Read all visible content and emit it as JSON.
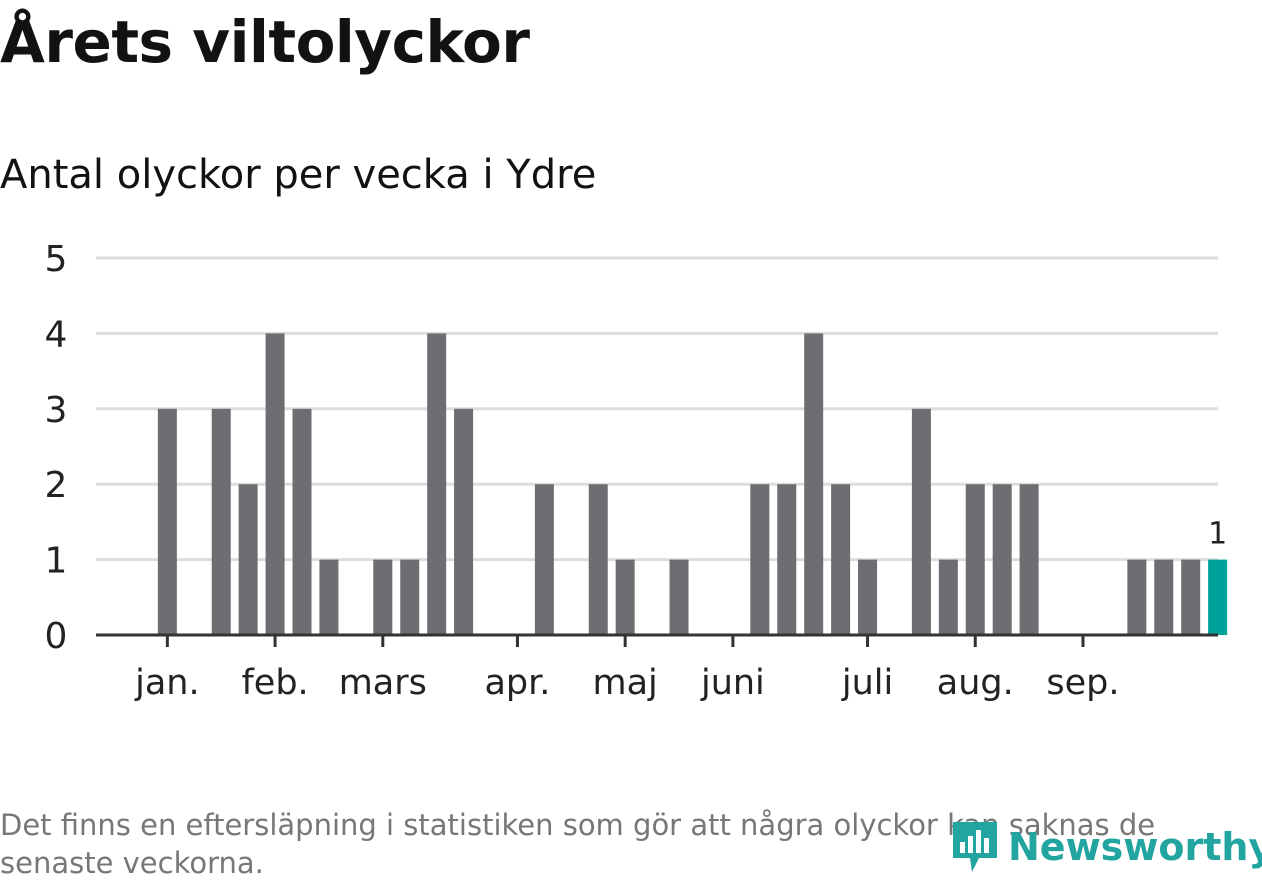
{
  "header": {
    "title": "Årets viltolyckor",
    "subtitle": "Antal olyckor per vecka i Ydre"
  },
  "footer": {
    "note": "Det finns en eftersläpning i statistiken som gör att några olyckor kan saknas de senaste veckorna.",
    "logo_text": "Newsworthy"
  },
  "colors": {
    "bar": "#6e6d72",
    "highlight": "#00a19a",
    "grid": "#dddddd",
    "axis": "#333333",
    "logo": "#22a4a0"
  },
  "chart_data": {
    "type": "bar",
    "title": "Antal olyckor per vecka i Ydre",
    "xlabel": "",
    "ylabel": "Antal olyckor",
    "ylim": [
      0,
      5
    ],
    "yticks": [
      "0",
      "1",
      "2",
      "3",
      "4",
      "5"
    ],
    "week_index_start": 0,
    "values": [
      0,
      0,
      3,
      0,
      3,
      2,
      4,
      3,
      1,
      0,
      1,
      1,
      4,
      3,
      0,
      0,
      2,
      0,
      2,
      1,
      0,
      1,
      0,
      0,
      2,
      2,
      4,
      2,
      1,
      0,
      3,
      1,
      2,
      2,
      2,
      0,
      0,
      0,
      1,
      1,
      1,
      1
    ],
    "highlight_index": 41,
    "highlight_label": "1",
    "month_labels": [
      {
        "label": "jan.",
        "week": 2
      },
      {
        "label": "feb.",
        "week": 6
      },
      {
        "label": "mars",
        "week": 10
      },
      {
        "label": "apr.",
        "week": 15
      },
      {
        "label": "maj",
        "week": 19
      },
      {
        "label": "juni",
        "week": 23
      },
      {
        "label": "juli",
        "week": 28
      },
      {
        "label": "aug.",
        "week": 32
      },
      {
        "label": "sep.",
        "week": 36
      }
    ]
  }
}
